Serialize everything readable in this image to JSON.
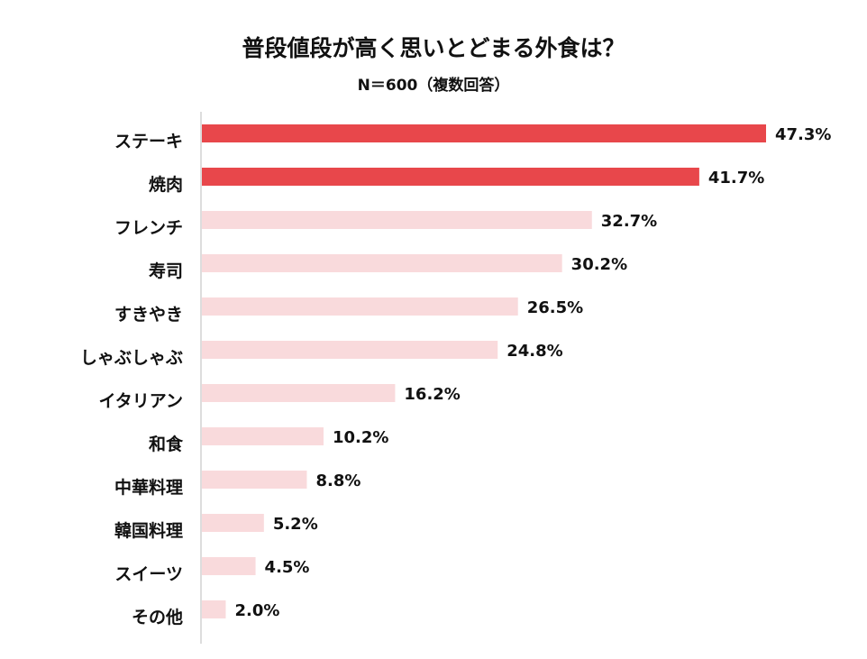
{
  "chart_data": {
    "type": "bar",
    "orientation": "horizontal",
    "title": "普段値段が高く思いとどまる外食は？",
    "subtitle": "N＝600（複数回答）",
    "categories": [
      "ステーキ",
      "焼肉",
      "フレンチ",
      "寿司",
      "すきやき",
      "しゃぶしゃぶ",
      "イタリアン",
      "和食",
      "中華料理",
      "韓国料理",
      "スイーツ",
      "その他"
    ],
    "values": [
      47.3,
      41.7,
      32.7,
      30.2,
      26.5,
      24.8,
      16.2,
      10.2,
      8.8,
      5.2,
      4.5,
      2.0
    ],
    "value_labels": [
      "47.3%",
      "41.7%",
      "32.7%",
      "30.2%",
      "26.5%",
      "24.8%",
      "16.2%",
      "10.2%",
      "8.8%",
      "5.2%",
      "4.5%",
      "2.0%"
    ],
    "unit": "%",
    "xlim": [
      0,
      47.3
    ],
    "highlight_count": 2,
    "colors": {
      "highlight": "#e8474b",
      "normal": "#f9dadc",
      "axis": "#bbbbbb"
    },
    "grid": false,
    "legend": "none"
  }
}
